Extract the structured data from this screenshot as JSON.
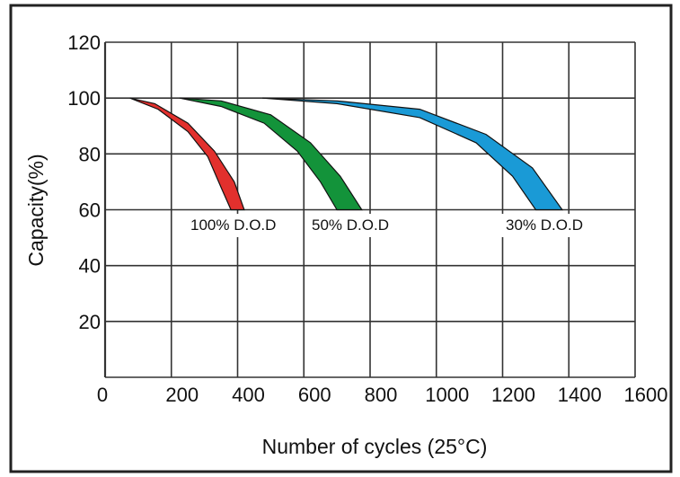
{
  "chart_data": {
    "type": "area",
    "xlabel": "Number of cycles (25°C)",
    "ylabel": "Capacity(%)",
    "xlim": [
      0,
      1600
    ],
    "ylim": [
      0,
      120
    ],
    "x_ticks": [
      "0",
      "200",
      "400",
      "600",
      "800",
      "1000",
      "1200",
      "1400",
      "1600"
    ],
    "y_ticks": [
      "20",
      "40",
      "60",
      "80",
      "100",
      "120"
    ],
    "grid": true,
    "series": [
      {
        "name": "100% D.O.D",
        "color": "#e2302d",
        "upper": [
          [
            75,
            100
          ],
          [
            150,
            98
          ],
          [
            250,
            91
          ],
          [
            330,
            81
          ],
          [
            390,
            70
          ],
          [
            420,
            60
          ]
        ],
        "lower": [
          [
            75,
            100
          ],
          [
            160,
            96
          ],
          [
            250,
            88
          ],
          [
            310,
            79
          ],
          [
            350,
            68
          ],
          [
            380,
            60
          ]
        ]
      },
      {
        "name": "50% D.O.D",
        "color": "#13933a",
        "upper": [
          [
            225,
            100
          ],
          [
            350,
            99
          ],
          [
            500,
            94
          ],
          [
            620,
            84
          ],
          [
            710,
            72
          ],
          [
            775,
            60
          ]
        ],
        "lower": [
          [
            225,
            100
          ],
          [
            350,
            97
          ],
          [
            480,
            91
          ],
          [
            580,
            81
          ],
          [
            650,
            70
          ],
          [
            700,
            60
          ]
        ]
      },
      {
        "name": "30% D.O.D",
        "color": "#1a9ad6",
        "upper": [
          [
            475,
            100
          ],
          [
            700,
            99
          ],
          [
            950,
            96
          ],
          [
            1150,
            87
          ],
          [
            1290,
            75
          ],
          [
            1380,
            60
          ]
        ],
        "lower": [
          [
            475,
            100
          ],
          [
            700,
            98
          ],
          [
            950,
            93
          ],
          [
            1120,
            84
          ],
          [
            1230,
            72
          ],
          [
            1300,
            60
          ]
        ]
      }
    ]
  }
}
